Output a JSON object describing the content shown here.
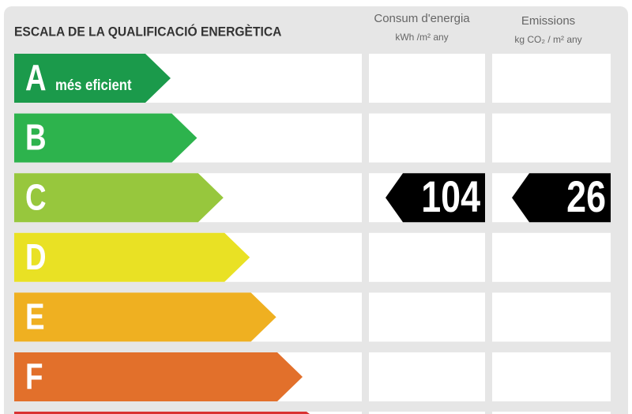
{
  "header": {
    "title": "ESCALA DE LA QUALIFICACIÓ ENERGÈTICA",
    "columns": [
      {
        "title": "Consum d'energia",
        "unit": "kWh /m² any"
      },
      {
        "title": "Emissions",
        "unit": "kg CO₂ / m² any"
      }
    ]
  },
  "ratings": [
    {
      "letter": "A",
      "note": "més eficient",
      "color": "#1b9a4b"
    },
    {
      "letter": "B",
      "color": "#2db34d"
    },
    {
      "letter": "C",
      "color": "#97c73d",
      "consumption": "104",
      "emissions": "26"
    },
    {
      "letter": "D",
      "color": "#e9e124"
    },
    {
      "letter": "E",
      "color": "#efb021"
    },
    {
      "letter": "F",
      "color": "#e2702b"
    }
  ]
}
